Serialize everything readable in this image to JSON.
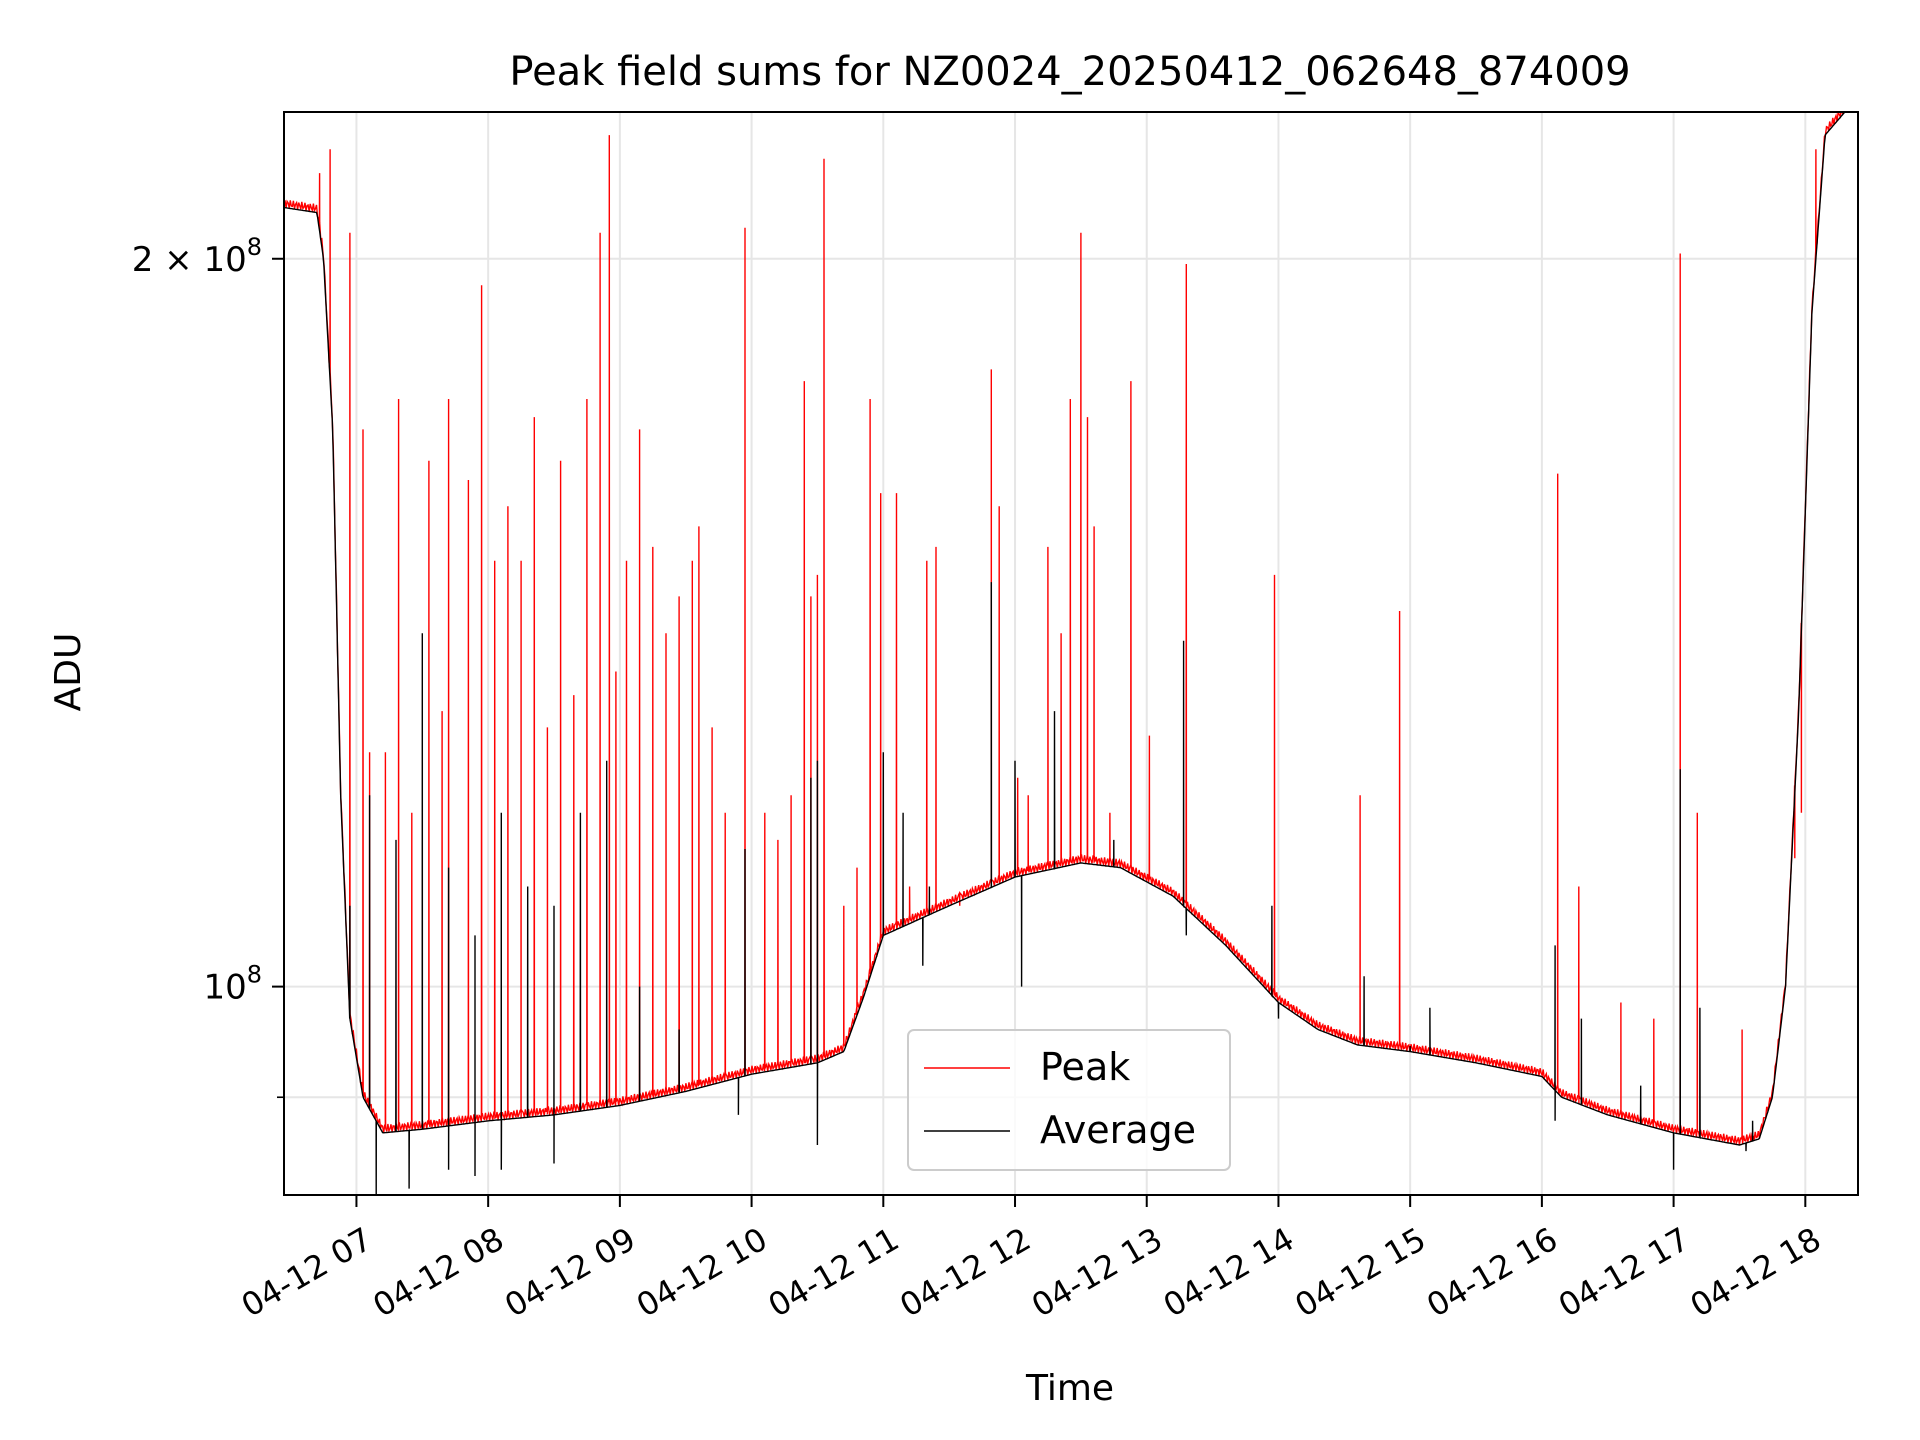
{
  "chart_data": {
    "type": "line",
    "title": "Peak field sums for NZ0024_20250412_062648_874009",
    "xlabel": "Time",
    "ylabel": "ADU",
    "x_unit": "hours on 2025-04-12 (decimal clock time)",
    "xlim": [
      6.45,
      18.4
    ],
    "ylim": [
      82000000,
      230000000
    ],
    "y_scale": "log",
    "grid": true,
    "legend_position": "lower center",
    "x_ticks": [
      7,
      8,
      9,
      10,
      11,
      12,
      13,
      14,
      15,
      16,
      17,
      18
    ],
    "x_tick_labels": [
      "04-12 07",
      "04-12 08",
      "04-12 09",
      "04-12 10",
      "04-12 11",
      "04-12 12",
      "04-12 13",
      "04-12 14",
      "04-12 15",
      "04-12 16",
      "04-12 17",
      "04-12 18"
    ],
    "y_ticks": [
      100000000,
      200000000
    ],
    "y_tick_labels": [
      {
        "base": "10",
        "exp": "8"
      },
      {
        "base": "2 × 10",
        "exp": "8"
      }
    ],
    "y_minor_ticks": [
      90000000
    ],
    "series": [
      {
        "name": "Average",
        "color": "#000000",
        "baseline": [
          [
            6.45,
            210000000
          ],
          [
            6.7,
            209000000
          ],
          [
            6.75,
            200000000
          ],
          [
            6.82,
            170000000
          ],
          [
            6.88,
            120000000
          ],
          [
            6.95,
            97000000
          ],
          [
            7.05,
            90000000
          ],
          [
            7.2,
            87000000
          ],
          [
            7.5,
            87300000
          ],
          [
            8.0,
            88000000
          ],
          [
            8.5,
            88500000
          ],
          [
            9.0,
            89300000
          ],
          [
            9.5,
            90500000
          ],
          [
            10.0,
            92000000
          ],
          [
            10.5,
            93000000
          ],
          [
            10.7,
            94000000
          ],
          [
            10.85,
            99000000
          ],
          [
            11.0,
            105000000
          ],
          [
            11.5,
            108000000
          ],
          [
            12.0,
            111000000
          ],
          [
            12.5,
            112500000
          ],
          [
            12.8,
            112000000
          ],
          [
            13.2,
            109000000
          ],
          [
            13.6,
            104000000
          ],
          [
            14.0,
            98500000
          ],
          [
            14.3,
            96000000
          ],
          [
            14.6,
            94600000
          ],
          [
            15.0,
            94000000
          ],
          [
            15.5,
            93000000
          ],
          [
            16.0,
            91800000
          ],
          [
            16.15,
            90000000
          ],
          [
            16.5,
            88500000
          ],
          [
            17.0,
            87000000
          ],
          [
            17.5,
            86000000
          ],
          [
            17.65,
            86500000
          ],
          [
            17.75,
            90000000
          ],
          [
            17.85,
            100000000
          ],
          [
            17.95,
            130000000
          ],
          [
            18.05,
            190000000
          ],
          [
            18.15,
            225000000
          ],
          [
            18.3,
            230000000
          ]
        ],
        "dips": [
          [
            7.15,
            82000000
          ],
          [
            7.4,
            82500000
          ],
          [
            7.7,
            84000000
          ],
          [
            7.9,
            83500000
          ],
          [
            8.1,
            84000000
          ],
          [
            8.5,
            84500000
          ],
          [
            9.9,
            88500000
          ],
          [
            10.5,
            86000000
          ],
          [
            11.3,
            102000000
          ],
          [
            12.05,
            100000000
          ],
          [
            13.3,
            105000000
          ],
          [
            14.0,
            97000000
          ],
          [
            15.0,
            94500000
          ],
          [
            16.1,
            88000000
          ],
          [
            17.0,
            84000000
          ],
          [
            17.55,
            85500000
          ]
        ],
        "spikes": [
          [
            6.95,
            108000000
          ],
          [
            7.1,
            120000000
          ],
          [
            7.3,
            115000000
          ],
          [
            7.5,
            140000000
          ],
          [
            7.7,
            112000000
          ],
          [
            7.9,
            105000000
          ],
          [
            8.1,
            118000000
          ],
          [
            8.3,
            110000000
          ],
          [
            8.5,
            108000000
          ],
          [
            8.7,
            118000000
          ],
          [
            8.9,
            124000000
          ],
          [
            9.15,
            100000000
          ],
          [
            9.45,
            96000000
          ],
          [
            9.95,
            114000000
          ],
          [
            10.45,
            122000000
          ],
          [
            10.5,
            124000000
          ],
          [
            11.0,
            125000000
          ],
          [
            11.15,
            118000000
          ],
          [
            11.35,
            110000000
          ],
          [
            11.82,
            147000000
          ],
          [
            12.0,
            124000000
          ],
          [
            12.3,
            130000000
          ],
          [
            12.75,
            115000000
          ],
          [
            13.28,
            139000000
          ],
          [
            13.95,
            108000000
          ],
          [
            14.65,
            101000000
          ],
          [
            15.15,
            98000000
          ],
          [
            16.1,
            104000000
          ],
          [
            16.3,
            97000000
          ],
          [
            16.75,
            91000000
          ],
          [
            17.05,
            123000000
          ],
          [
            17.2,
            98000000
          ],
          [
            17.6,
            88000000
          ]
        ]
      },
      {
        "name": "Peak",
        "color": "#ff0000",
        "offset_fraction": 0.008,
        "spikes": [
          [
            6.72,
            217000000
          ],
          [
            6.8,
            222000000
          ],
          [
            6.95,
            205000000
          ],
          [
            7.05,
            170000000
          ],
          [
            7.1,
            125000000
          ],
          [
            7.22,
            125000000
          ],
          [
            7.32,
            175000000
          ],
          [
            7.42,
            118000000
          ],
          [
            7.55,
            165000000
          ],
          [
            7.65,
            130000000
          ],
          [
            7.7,
            175000000
          ],
          [
            7.85,
            162000000
          ],
          [
            7.95,
            195000000
          ],
          [
            8.05,
            150000000
          ],
          [
            8.15,
            158000000
          ],
          [
            8.25,
            150000000
          ],
          [
            8.35,
            172000000
          ],
          [
            8.45,
            128000000
          ],
          [
            8.55,
            165000000
          ],
          [
            8.65,
            132000000
          ],
          [
            8.75,
            175000000
          ],
          [
            8.85,
            205000000
          ],
          [
            8.92,
            225000000
          ],
          [
            8.97,
            135000000
          ],
          [
            9.05,
            150000000
          ],
          [
            9.15,
            170000000
          ],
          [
            9.25,
            152000000
          ],
          [
            9.35,
            140000000
          ],
          [
            9.45,
            145000000
          ],
          [
            9.55,
            150000000
          ],
          [
            9.6,
            155000000
          ],
          [
            9.7,
            128000000
          ],
          [
            9.8,
            118000000
          ],
          [
            9.95,
            206000000
          ],
          [
            10.1,
            118000000
          ],
          [
            10.2,
            115000000
          ],
          [
            10.3,
            120000000
          ],
          [
            10.4,
            178000000
          ],
          [
            10.45,
            145000000
          ],
          [
            10.5,
            148000000
          ],
          [
            10.55,
            220000000
          ],
          [
            10.7,
            108000000
          ],
          [
            10.8,
            112000000
          ],
          [
            10.9,
            175000000
          ],
          [
            10.98,
            160000000
          ],
          [
            11.1,
            160000000
          ],
          [
            11.2,
            110000000
          ],
          [
            11.33,
            150000000
          ],
          [
            11.4,
            152000000
          ],
          [
            11.58,
            108000000
          ],
          [
            11.82,
            180000000
          ],
          [
            11.88,
            158000000
          ],
          [
            12.02,
            122000000
          ],
          [
            12.1,
            120000000
          ],
          [
            12.18,
            112000000
          ],
          [
            12.25,
            152000000
          ],
          [
            12.35,
            140000000
          ],
          [
            12.42,
            175000000
          ],
          [
            12.5,
            205000000
          ],
          [
            12.55,
            172000000
          ],
          [
            12.6,
            155000000
          ],
          [
            12.72,
            118000000
          ],
          [
            12.88,
            178000000
          ],
          [
            13.02,
            127000000
          ],
          [
            13.3,
            199000000
          ],
          [
            13.97,
            148000000
          ],
          [
            14.62,
            120000000
          ],
          [
            14.92,
            143000000
          ],
          [
            16.12,
            163000000
          ],
          [
            16.28,
            110000000
          ],
          [
            16.6,
            98500000
          ],
          [
            16.85,
            97000000
          ],
          [
            17.05,
            201000000
          ],
          [
            17.18,
            118000000
          ],
          [
            17.52,
            96000000
          ],
          [
            17.92,
            113000000
          ],
          [
            17.97,
            118000000
          ],
          [
            18.08,
            222000000
          ]
        ]
      }
    ]
  }
}
